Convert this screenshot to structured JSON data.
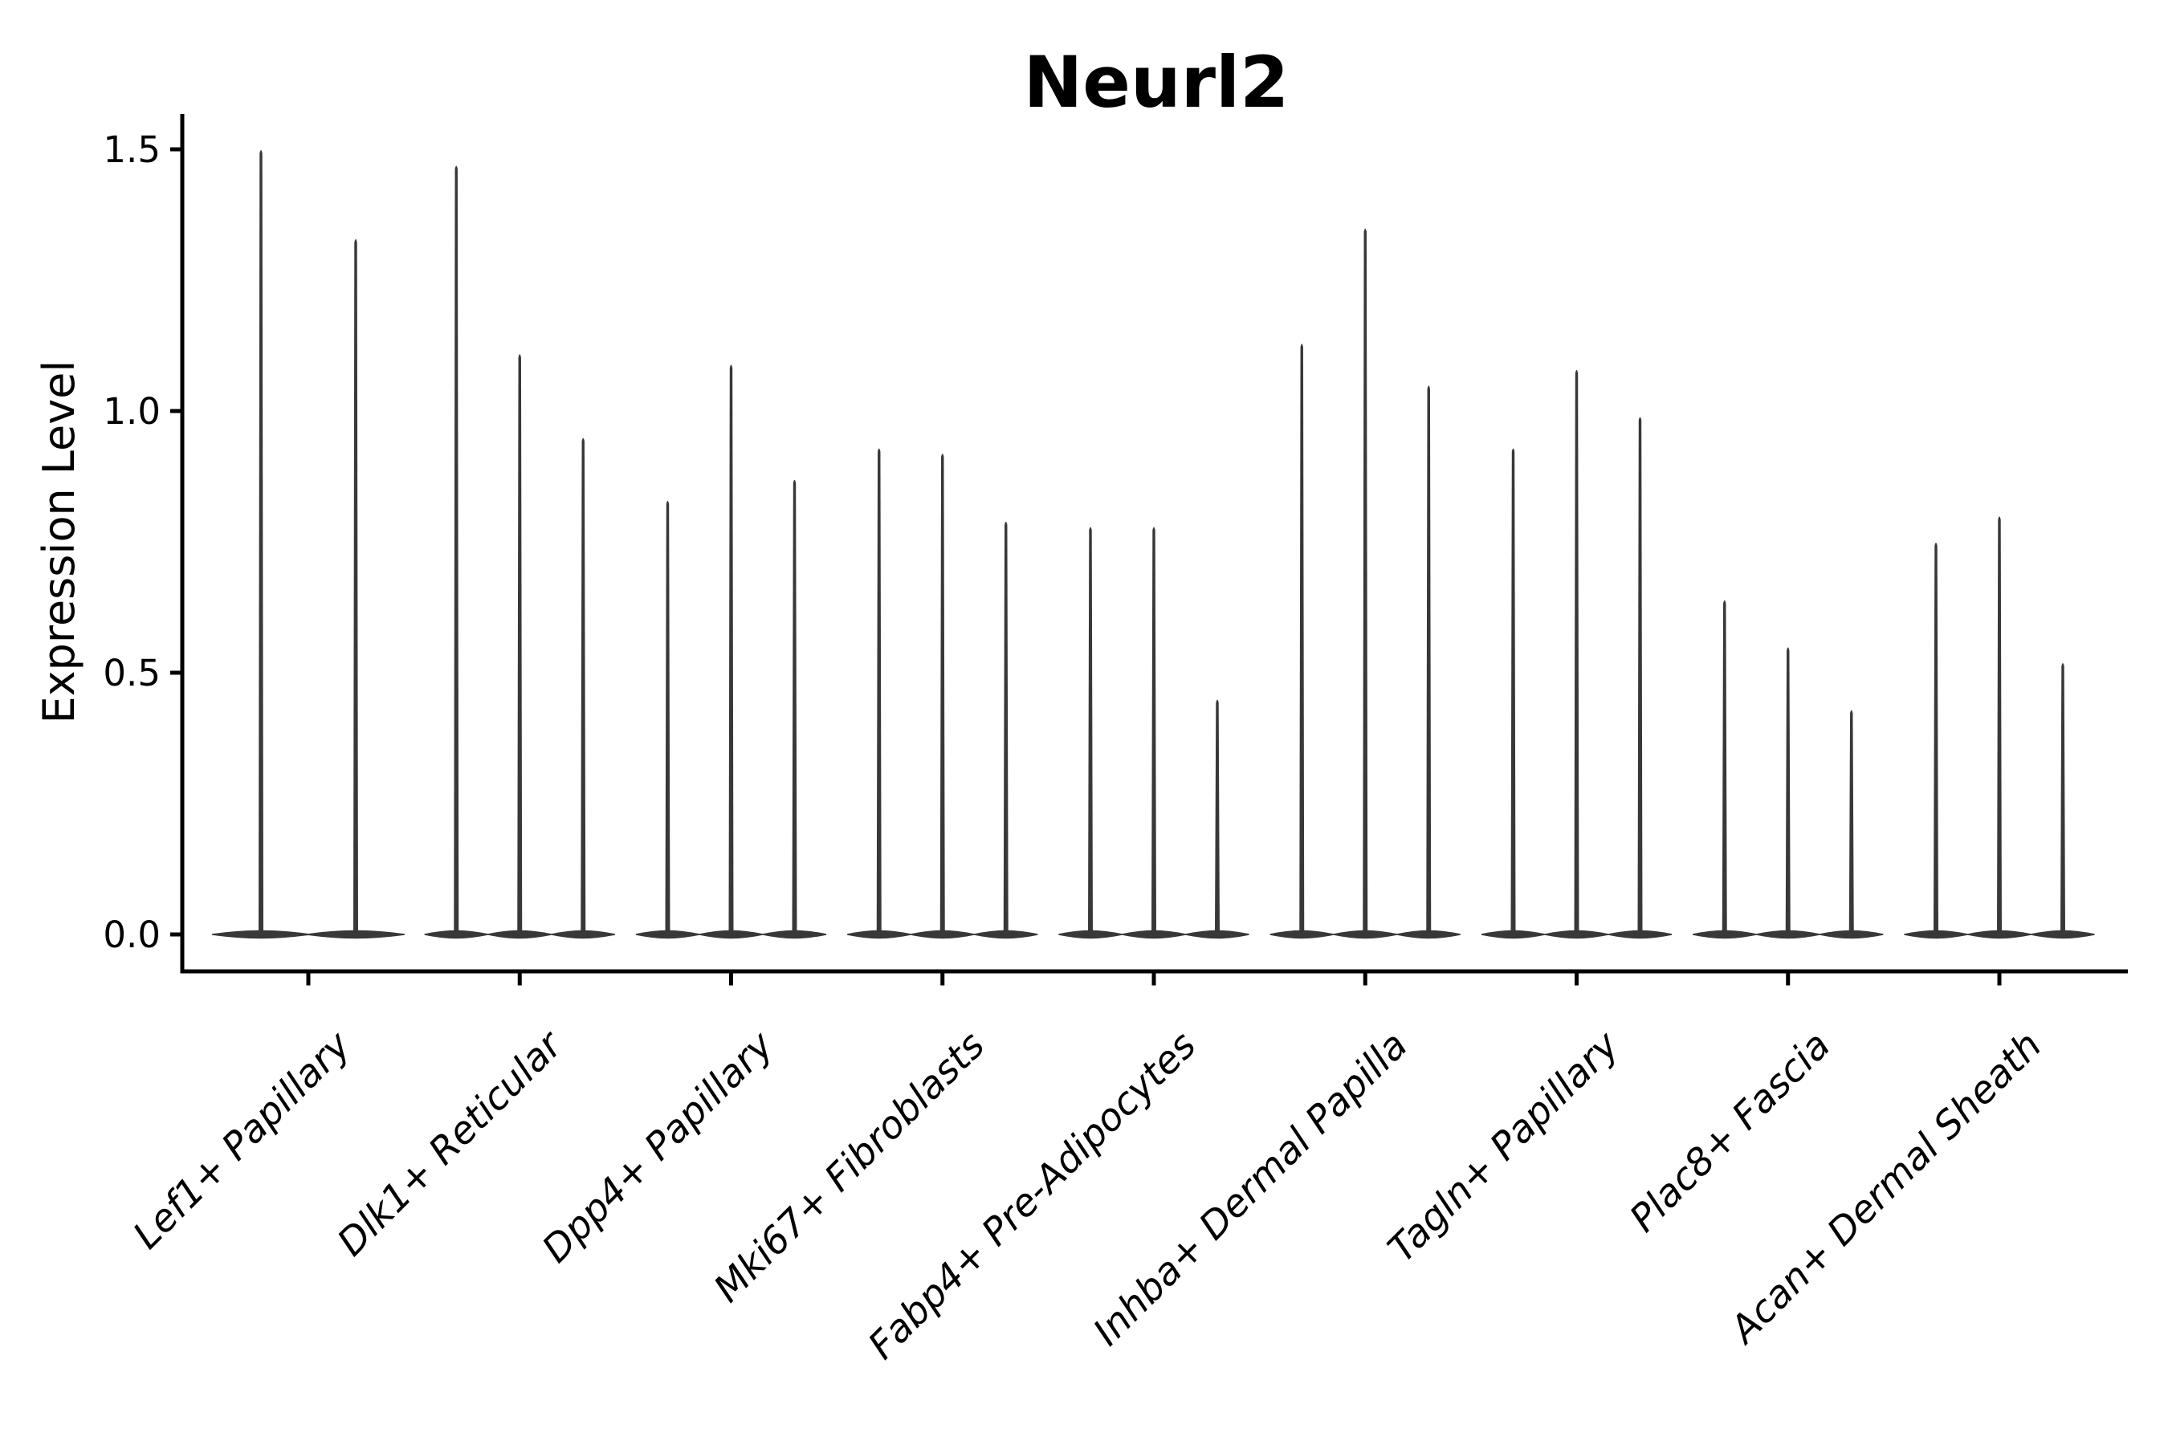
{
  "title": "Neurl2",
  "y_axis": {
    "label": "Expression Level",
    "tick_labels": [
      "0.0",
      "0.5",
      "1.0",
      "1.5"
    ],
    "tick_values": [
      0.0,
      0.5,
      1.0,
      1.5
    ]
  },
  "x_axis": {
    "tick_labels": [
      "Lef1+ Papillary",
      "Dlk1+ Reticular",
      "Dpp4+ Papillary",
      "Mki67+ Fibroblasts",
      "Fabp4+ Pre-Adipocytes",
      "Inhba+ Dermal Papilla",
      "Tagln+ Papillary",
      "Plac8+ Fascia",
      "Acan+ Dermal Sheath"
    ]
  },
  "colors": {
    "violin": "#383838",
    "axis": "#000000",
    "background": "#ffffff"
  },
  "chart_data": {
    "type": "violin",
    "title": "Neurl2",
    "xlabel": "",
    "ylabel": "Expression Level",
    "ylim": [
      -0.07,
      1.57
    ],
    "yticks": [
      0.0,
      0.5,
      1.0,
      1.5
    ],
    "grid": false,
    "legend": "none",
    "x_tick_rotation_deg": 45,
    "violin_style": "needle-thin spikes rising from flat lens-shaped bases at 0 (most cells express 0)",
    "categories": [
      "Lef1+ Papillary",
      "Dlk1+ Reticular",
      "Dpp4+ Papillary",
      "Mki67+ Fibroblasts",
      "Fabp4+ Pre-Adipocytes",
      "Inhba+ Dermal Papilla",
      "Tagln+ Papillary",
      "Plac8+ Fascia",
      "Acan+ Dermal Sheath"
    ],
    "series": [
      {
        "category": "Lef1+ Papillary",
        "violin_min": 0,
        "violin_max_values": [
          1.5,
          1.33
        ]
      },
      {
        "category": "Dlk1+ Reticular",
        "violin_min": 0,
        "violin_max_values": [
          1.47,
          1.11,
          0.95
        ]
      },
      {
        "category": "Dpp4+ Papillary",
        "violin_min": 0,
        "violin_max_values": [
          0.83,
          1.09,
          0.87
        ]
      },
      {
        "category": "Mki67+ Fibroblasts",
        "violin_min": 0,
        "violin_max_values": [
          0.93,
          0.92,
          0.79
        ]
      },
      {
        "category": "Fabp4+ Pre-Adipocytes",
        "violin_min": 0,
        "violin_max_values": [
          0.78,
          0.78,
          0.45
        ]
      },
      {
        "category": "Inhba+ Dermal Papilla",
        "violin_min": 0,
        "violin_max_values": [
          1.13,
          1.35,
          1.05
        ]
      },
      {
        "category": "Tagln+ Papillary",
        "violin_min": 0,
        "violin_max_values": [
          0.93,
          1.08,
          0.99
        ]
      },
      {
        "category": "Plac8+ Fascia",
        "violin_min": 0,
        "violin_max_values": [
          0.64,
          0.55,
          0.43
        ]
      },
      {
        "category": "Acan+ Dermal Sheath",
        "violin_min": 0,
        "violin_max_values": [
          0.75,
          0.8,
          0.52
        ]
      }
    ]
  }
}
